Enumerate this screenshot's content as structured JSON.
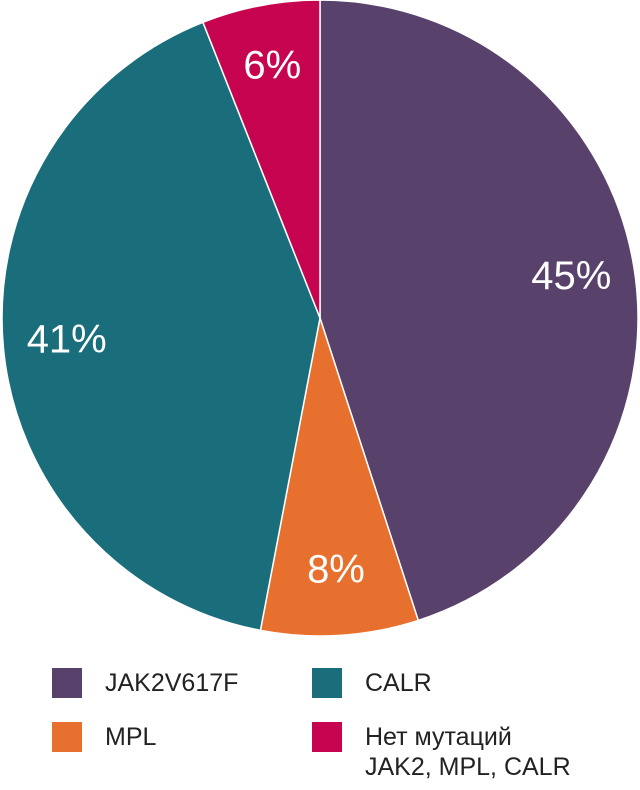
{
  "chart_data": {
    "type": "pie",
    "categories": [
      "JAK2V617F",
      "MPL",
      "CALR",
      "Нет мутаций\nJAK2, MPL, CALR"
    ],
    "values": [
      45,
      8,
      41,
      6
    ],
    "value_labels": [
      "45%",
      "8%",
      "41%",
      "6%"
    ],
    "colors": [
      "#58416b",
      "#e8702e",
      "#1a6e7c",
      "#c7044f"
    ]
  }
}
